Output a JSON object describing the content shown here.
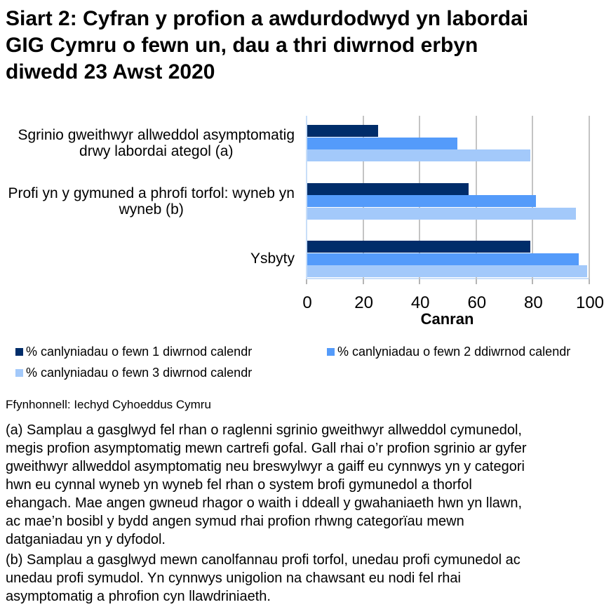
{
  "title_lines": [
    "Siart 2: Cyfran y profion a awdurdodwyd yn labordai",
    "GIG Cymru o fewn un, dau a thri diwrnod erbyn",
    "diwedd 23 Awst 2020"
  ],
  "chart_data": {
    "type": "bar",
    "orientation": "horizontal",
    "categories": [
      "Sgrinio gweithwyr allweddol asymptomatig drwy labordai ategol (a)",
      "Profi yn y gymuned a phrofi torfol: wyneb yn wyneb (b)",
      "Ysbyty"
    ],
    "category_label_lines": [
      [
        "Sgrinio gweithwyr allweddol asymptomatig",
        "drwy labordai ategol (a)"
      ],
      [
        "Profi yn y gymuned a phrofi torfol: wyneb yn",
        "wyneb (b)"
      ],
      [
        "Ysbyty"
      ]
    ],
    "series": [
      {
        "name": "% canlyniadau o fewn 1 diwrnod calendr",
        "color": "#002d6a",
        "values": [
          25,
          57,
          79
        ]
      },
      {
        "name": "% canlyniadau o fewn 2 ddiwrnod calendr",
        "color": "#549bfa",
        "values": [
          53,
          81,
          96
        ]
      },
      {
        "name": "% canlyniadau o fewn 3 diwrnod calendr",
        "color": "#a3c9fa",
        "values": [
          79,
          95,
          99
        ]
      }
    ],
    "xlabel": "Canran",
    "x_ticks": [
      0,
      20,
      40,
      60,
      80,
      100
    ],
    "xlim": [
      0,
      100
    ],
    "grid": true,
    "legend_position": "bottom"
  },
  "colors": {
    "axis_line": "#c8def8",
    "gridline": "#c4c4c4",
    "tick_mark": "#b5b5b5"
  },
  "source": "Ffynhonnell: Iechyd Cyhoeddus Cymru",
  "footnotes": [
    {
      "lines": [
        "(a) Samplau a gasglwyd fel rhan o raglenni sgrinio gweithwyr allweddol cymunedol,",
        "megis profion asymptomatig mewn cartrefi gofal. Gall rhai o’r profion sgrinio ar gyfer",
        "gweithwyr allweddol asymptomatig neu breswylwyr a gaiff eu cynnwys yn y categori",
        "hwn eu cynnal wyneb yn wyneb fel rhan o system brofi gymunedol a thorfol",
        "ehangach. Mae angen gwneud rhagor o waith i ddeall y gwahaniaeth hwn yn llawn,",
        "ac mae’n bosibl y bydd angen symud rhai profion rhwng categorïau mewn",
        "datganiadau yn y dyfodol."
      ]
    },
    {
      "lines": [
        "(b) Samplau a gasglwyd mewn canolfannau profi torfol, unedau profi cymunedol ac",
        "unedau profi symudol. Yn cynnwys unigolion na chawsant eu nodi fel rhai",
        "asymptomatig a phrofion cyn llawdriniaeth."
      ]
    }
  ]
}
